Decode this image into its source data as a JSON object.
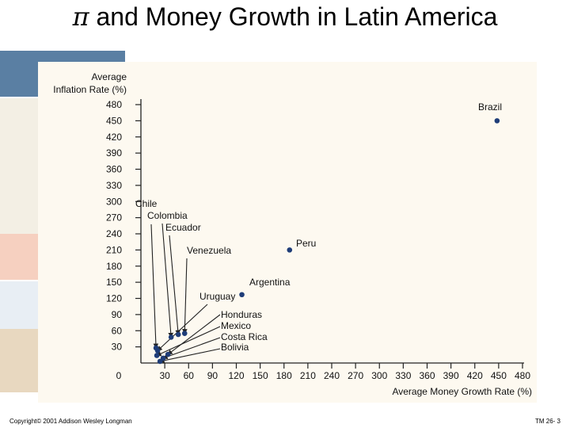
{
  "slide": {
    "title_symbol": "π",
    "title_text": " and Money Growth in Latin America",
    "footer_left": "Copyright© 2001 Addison Wesley Longman",
    "footer_right": "TM 26- 3"
  },
  "colors": {
    "accent_blue": "#5a7fa3",
    "accent_peach": "#f6d0c0",
    "accent_tan": "#e8d8c0",
    "accent_pale": "#e8eef4",
    "chart_bg": "#fdf9f0",
    "dot": "#1f3d78"
  },
  "chart_data": {
    "type": "scatter",
    "title": "",
    "xlabel": "Average Money Growth Rate (%)",
    "ylabel_line1": "Average",
    "ylabel_line2": "Inflation Rate (%)",
    "xlim": [
      0,
      480
    ],
    "ylim": [
      0,
      480
    ],
    "x_ticks": [
      30,
      60,
      90,
      120,
      150,
      180,
      210,
      240,
      270,
      300,
      330,
      360,
      390,
      420,
      450,
      480
    ],
    "y_ticks": [
      30,
      60,
      90,
      120,
      150,
      180,
      210,
      240,
      270,
      300,
      330,
      360,
      390,
      420,
      450,
      480
    ],
    "origin_label": "0",
    "points": [
      {
        "name": "Brazil",
        "x": 448,
        "y": 450
      },
      {
        "name": "Peru",
        "x": 187,
        "y": 210
      },
      {
        "name": "Argentina",
        "x": 127,
        "y": 127
      },
      {
        "name": "Venezuela",
        "x": 55,
        "y": 55
      },
      {
        "name": "Ecuador",
        "x": 47,
        "y": 53
      },
      {
        "name": "Colombia",
        "x": 38,
        "y": 48
      },
      {
        "name": "Uruguay",
        "x": 21,
        "y": 23
      },
      {
        "name": "Chile",
        "x": 19,
        "y": 28
      },
      {
        "name": "Honduras",
        "x": 34,
        "y": 16
      },
      {
        "name": "Mexico",
        "x": 20,
        "y": 14
      },
      {
        "name": "Costa Rica",
        "x": 28,
        "y": 9
      },
      {
        "name": "Bolivia",
        "x": 24,
        "y": 3
      }
    ]
  }
}
